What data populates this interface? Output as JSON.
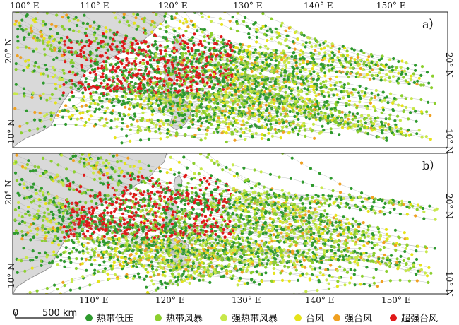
{
  "colors": {
    "land": "#d9d9d9",
    "coast": "#8a8a8a",
    "sea": "#ffffff",
    "td": "#2e9a2e",
    "ts": "#8ccf2e",
    "sts": "#c7e84a",
    "ty": "#e6e31a",
    "sty": "#f0a020",
    "superty": "#e01818"
  },
  "top_axis": {
    "labels": [
      "100° E",
      "110° E",
      "120° E",
      "130° E",
      "140° E",
      "150° E"
    ]
  },
  "bottom_axis": {
    "labels": [
      "110° E",
      "120° E",
      "130° E",
      "140° E",
      "150° E"
    ]
  },
  "panels": [
    {
      "label": "a）",
      "lat_labels": [
        "20° N",
        "10° N"
      ]
    },
    {
      "label": "b）",
      "lat_labels": [
        "20° N",
        "10° N"
      ]
    }
  ],
  "scale_bar": {
    "zero": "0",
    "distance": "500 km"
  },
  "legend": [
    {
      "label": "热带低压",
      "color_key": "td"
    },
    {
      "label": "热带风暴",
      "color_key": "ts"
    },
    {
      "label": "强热带风暴",
      "color_key": "sts"
    },
    {
      "label": "台风",
      "color_key": "ty"
    },
    {
      "label": "强台风",
      "color_key": "sty"
    },
    {
      "label": "超强台风",
      "color_key": "superty"
    }
  ]
}
